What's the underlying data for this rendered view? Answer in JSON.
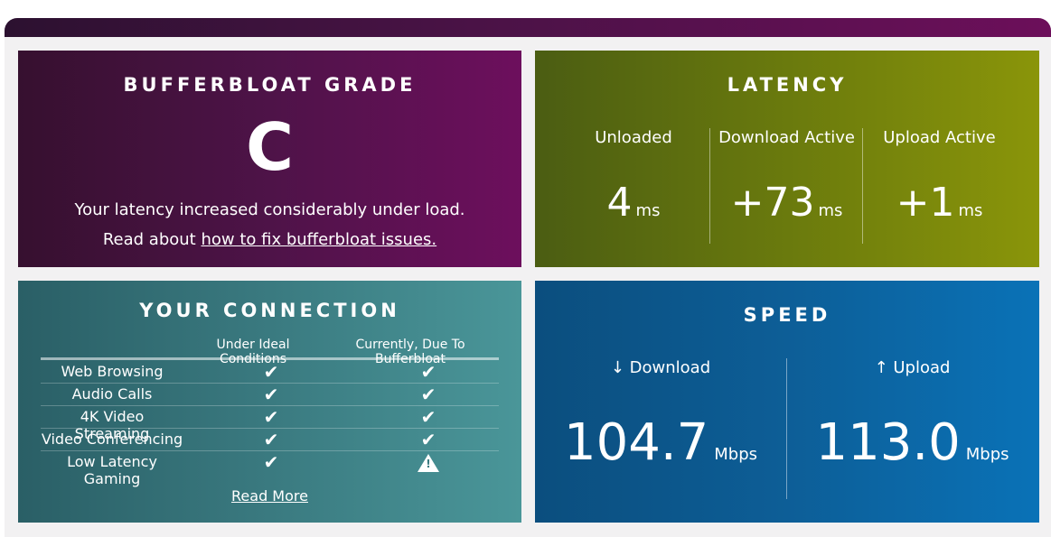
{
  "grade": {
    "title": "BUFFERBLOAT GRADE",
    "letter": "C",
    "description": "Your latency increased considerably under load.",
    "read_prefix": "Read about ",
    "link_text": "how to fix bufferbloat issues."
  },
  "latency": {
    "title": "LATENCY",
    "columns": [
      {
        "label": "Unloaded",
        "value": "4",
        "unit": "ms"
      },
      {
        "label": "Download Active",
        "value": "+73",
        "unit": "ms"
      },
      {
        "label": "Upload Active",
        "value": "+1",
        "unit": "ms"
      }
    ]
  },
  "connection": {
    "title": "YOUR CONNECTION",
    "headers": {
      "ideal": "Under Ideal Conditions",
      "current": "Currently, Due To Bufferbloat"
    },
    "rows": [
      {
        "label": "Web Browsing",
        "ideal": "check",
        "current": "check"
      },
      {
        "label": "Audio Calls",
        "ideal": "check",
        "current": "check"
      },
      {
        "label": "4K Video Streaming",
        "ideal": "check",
        "current": "check"
      },
      {
        "label": "Video Conferencing",
        "ideal": "check",
        "current": "check"
      },
      {
        "label": "Low Latency Gaming",
        "ideal": "check",
        "current": "warning"
      }
    ],
    "check_glyph": "✔",
    "read_more": "Read More"
  },
  "speed": {
    "title": "SPEED",
    "download": {
      "label": "↓ Download",
      "value": "104.7",
      "unit": "Mbps"
    },
    "upload": {
      "label": "↑ Upload",
      "value": "113.0",
      "unit": "Mbps"
    }
  }
}
